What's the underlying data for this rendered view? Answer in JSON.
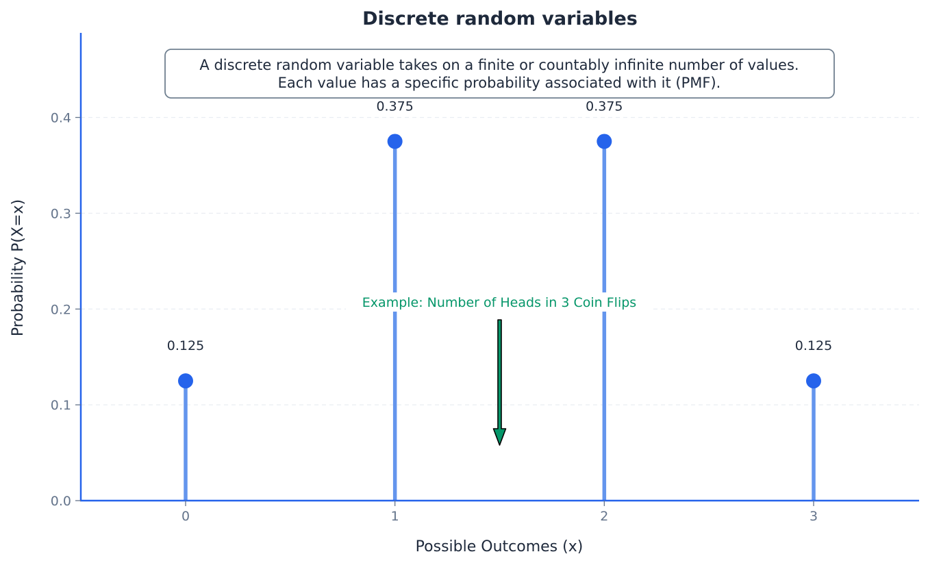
{
  "chart_data": {
    "type": "stem",
    "title": "Discrete random variables",
    "xlabel": "Possible Outcomes (x)",
    "ylabel": "Probability P(X=x)",
    "x": [
      0,
      1,
      2,
      3
    ],
    "values": [
      0.125,
      0.375,
      0.375,
      0.125
    ],
    "data_labels": [
      "0.125",
      "0.375",
      "0.375",
      "0.125"
    ],
    "x_ticks": [
      "0",
      "1",
      "2",
      "3"
    ],
    "y_ticks": [
      "0.0",
      "0.1",
      "0.2",
      "0.3",
      "0.4"
    ],
    "xlim": [
      -0.5,
      3.5
    ],
    "ylim": [
      0,
      0.48
    ],
    "grid": "horizontal dashed",
    "info_box": [
      "A discrete random variable takes on a finite or countably infinite number of values.",
      "Each value has a specific probability associated with it (PMF)."
    ],
    "annotation": {
      "text": "Example: Number of Heads in 3 Coin Flips",
      "arrow_x": 1.5,
      "arrow_from_y": 0.19,
      "arrow_to_y": 0.06
    },
    "colors": {
      "stem": "#6495ed",
      "marker": "#2563eb",
      "axis": "#2563eb",
      "annotation": "#059669",
      "title": "#1e293b"
    }
  }
}
